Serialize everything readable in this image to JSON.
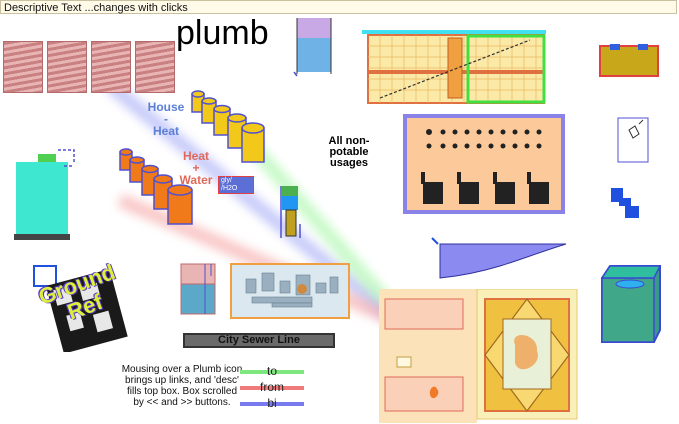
{
  "topbar": {
    "text": "Descriptive Text ...changes with clicks"
  },
  "title": "plumb",
  "labels": {
    "house_heat": [
      "House",
      "-",
      "Heat"
    ],
    "heat_water": [
      "Heat",
      "+",
      "Water"
    ],
    "gly_h2o": [
      "gly/",
      "/H2O"
    ],
    "all_non_potable": [
      "All non-",
      "potable",
      "usages"
    ],
    "ground_ref": [
      "Ground",
      "Ref"
    ],
    "city_sewer": "City Sewer Line"
  },
  "instructions": [
    "Mousing over a Plumb icon",
    "brings up links, and 'desc'",
    "fills top box. Box scrolled",
    "by << and >> buttons."
  ],
  "legend": [
    {
      "label": "to",
      "color": "#7ee87e"
    },
    {
      "label": "from",
      "color": "#f07a7a"
    },
    {
      "label": "bi",
      "color": "#7a7af0"
    }
  ],
  "colors": {
    "tank_orange": "#f07a1a",
    "tank_yellow": "#f2c81a",
    "tank_border": "#5050d0",
    "teal_tank": "#3ee8d0"
  },
  "icons": [
    "wave-tiles-icon",
    "water-glass-icon",
    "floorplan-icon",
    "gold-box-icon",
    "brine-tank-icon",
    "spring-tanks-icon",
    "gly-heater-icon",
    "dot-panel-icon",
    "lamp-icon",
    "blue-blocks-icon",
    "ground-ref-icon",
    "small-tank-icon",
    "pump-render-icon",
    "slope-icon",
    "site-plan-icon",
    "green-box-icon"
  ]
}
